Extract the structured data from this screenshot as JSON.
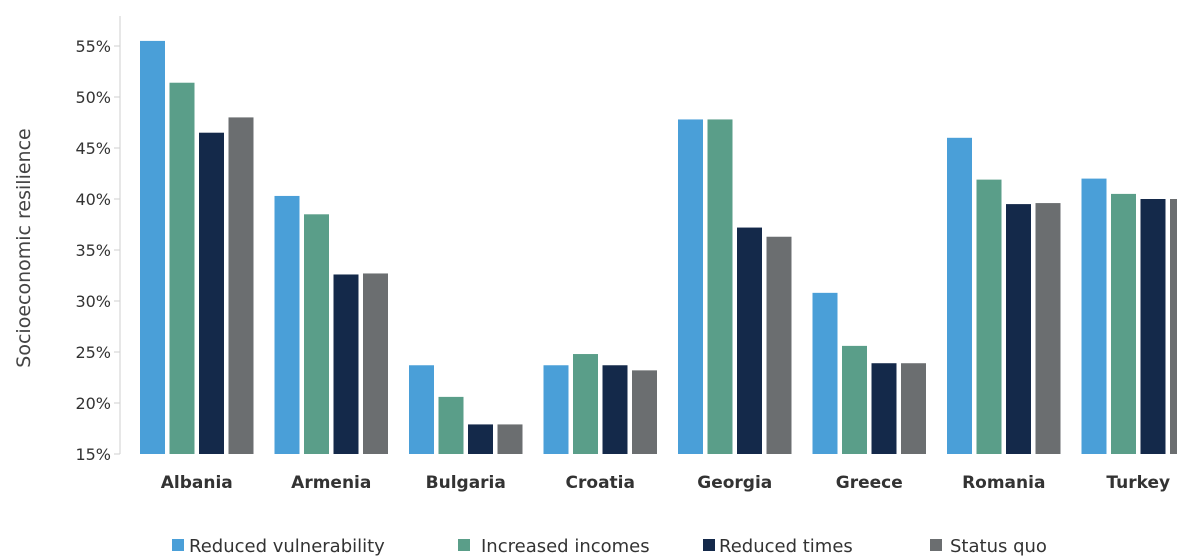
{
  "chart_data": {
    "type": "bar",
    "title": "",
    "xlabel": "",
    "ylabel": "Socioeconomic resilience",
    "ylim": [
      15,
      57
    ],
    "yticks": [
      15,
      20,
      25,
      30,
      35,
      40,
      45,
      50,
      55
    ],
    "ytick_labels": [
      "15%",
      "20%",
      "25%",
      "30%",
      "35%",
      "40%",
      "45%",
      "50%",
      "55%"
    ],
    "grid": false,
    "legend_position": "bottom",
    "categories": [
      "Albania",
      "Armenia",
      "Bulgaria",
      "Croatia",
      "Georgia",
      "Greece",
      "Romania",
      "Turkey"
    ],
    "series": [
      {
        "name": "Reduced vulnerability",
        "color": "#4a9fd8",
        "values": [
          55.5,
          40.3,
          23.7,
          23.7,
          47.8,
          30.8,
          46.0,
          42.0
        ]
      },
      {
        "name": "Increased incomes",
        "color": "#5a9e89",
        "values": [
          51.4,
          38.5,
          20.6,
          24.8,
          47.8,
          25.6,
          41.9,
          40.5
        ]
      },
      {
        "name": "Reduced times",
        "color": "#14294a",
        "values": [
          46.5,
          32.6,
          17.9,
          23.7,
          37.2,
          23.9,
          39.5,
          40.0
        ]
      },
      {
        "name": "Status quo",
        "color": "#6b6e70",
        "values": [
          48.0,
          32.7,
          17.9,
          23.2,
          36.3,
          23.9,
          39.6,
          40.0
        ]
      }
    ]
  }
}
